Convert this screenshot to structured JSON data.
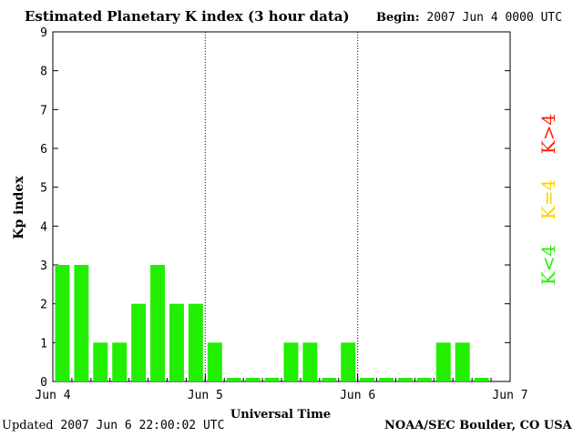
{
  "header": {
    "title": "Estimated Planetary K index (3 hour data)",
    "begin_label": "Begin:",
    "begin_value": "2007 Jun 4 0000 UTC"
  },
  "footer": {
    "updated_label": "Updated",
    "updated_value": "2007 Jun  6 22:00:02 UTC",
    "credit": "NOAA/SEC Boulder, CO USA"
  },
  "legend": {
    "high": {
      "label": "K>4",
      "color": "#ff2000"
    },
    "equal": {
      "label": "K=4",
      "color": "#ffd000"
    },
    "low": {
      "label": "K<4",
      "color": "#22ee00"
    }
  },
  "chart_data": {
    "type": "bar",
    "title": "Estimated Planetary K index (3 hour data)",
    "xlabel": "Universal Time",
    "ylabel": "Kp index",
    "ylim": [
      0,
      9
    ],
    "yticks": [
      "0",
      "1",
      "2",
      "3",
      "4",
      "5",
      "6",
      "7",
      "8",
      "9"
    ],
    "xticks": [
      "Jun 4",
      "Jun 5",
      "Jun 6",
      "Jun 7"
    ],
    "bins_per_day": 8,
    "days": 3,
    "values": [
      3,
      3,
      1,
      1,
      2,
      3,
      2,
      2,
      1,
      0,
      0,
      0,
      1,
      1,
      0,
      1,
      0,
      0,
      0,
      0,
      1,
      1,
      0
    ],
    "bar_color": "#22ee00",
    "day_separators": "dotted"
  }
}
